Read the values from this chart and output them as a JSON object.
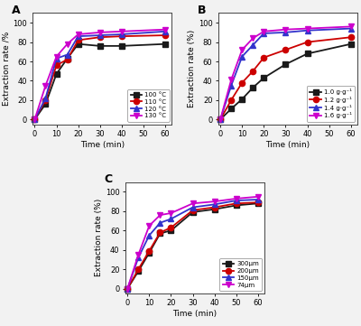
{
  "panel_A": {
    "title": "A",
    "xlabel": "Time (min)",
    "ylabel": "Extraction rate /%",
    "x": [
      0,
      5,
      10,
      15,
      20,
      30,
      40,
      60
    ],
    "series": [
      {
        "label": "100 °C",
        "color": "#1a1a1a",
        "marker": "s",
        "y": [
          0,
          16,
          47,
          63,
          78,
          76,
          76,
          78
        ]
      },
      {
        "label": "110 °C",
        "color": "#cc0000",
        "marker": "o",
        "y": [
          0,
          20,
          56,
          62,
          82,
          85,
          86,
          87
        ]
      },
      {
        "label": "120 °C",
        "color": "#3333cc",
        "marker": "^",
        "y": [
          0,
          22,
          63,
          67,
          86,
          87,
          88,
          91
        ]
      },
      {
        "label": "130 °C",
        "color": "#cc00cc",
        "marker": "v",
        "y": [
          0,
          35,
          65,
          78,
          88,
          90,
          91,
          93
        ]
      }
    ],
    "xlim": [
      -1,
      63
    ],
    "ylim": [
      -5,
      110
    ],
    "yticks": [
      0,
      20,
      40,
      60,
      80,
      100
    ],
    "xticks": [
      0,
      10,
      20,
      30,
      40,
      50,
      60
    ],
    "legend_loc": "lower right"
  },
  "panel_B": {
    "title": "B",
    "xlabel": "Time (min)",
    "ylabel": "Extraction rate (%)",
    "x": [
      0,
      5,
      10,
      15,
      20,
      30,
      40,
      60
    ],
    "series": [
      {
        "label": "1.0 g·g⁻¹",
        "color": "#1a1a1a",
        "marker": "s",
        "y": [
          0,
          11,
          21,
          33,
          43,
          57,
          68,
          78
        ]
      },
      {
        "label": "1.2 g·g⁻¹",
        "color": "#cc0000",
        "marker": "o",
        "y": [
          0,
          20,
          38,
          50,
          64,
          72,
          80,
          85
        ]
      },
      {
        "label": "1.4 g·g⁻¹",
        "color": "#3333cc",
        "marker": "^",
        "y": [
          0,
          35,
          65,
          77,
          89,
          90,
          92,
          94
        ]
      },
      {
        "label": "1.6 g·g⁻¹",
        "color": "#cc00cc",
        "marker": "v",
        "y": [
          0,
          41,
          72,
          84,
          91,
          93,
          94,
          96
        ]
      }
    ],
    "xlim": [
      -1,
      63
    ],
    "ylim": [
      -5,
      110
    ],
    "yticks": [
      0,
      20,
      40,
      60,
      80,
      100
    ],
    "xticks": [
      0,
      10,
      20,
      30,
      40,
      50,
      60
    ],
    "legend_loc": "lower right"
  },
  "panel_C": {
    "title": "C",
    "xlabel": "Time (min)",
    "ylabel": "Extraction rate (%)",
    "x": [
      0,
      5,
      10,
      15,
      20,
      30,
      40,
      50,
      60
    ],
    "series": [
      {
        "label": "300μm",
        "color": "#1a1a1a",
        "marker": "s",
        "y": [
          0,
          18,
          37,
          57,
          60,
          79,
          82,
          86,
          88
        ]
      },
      {
        "label": "200μm",
        "color": "#cc0000",
        "marker": "o",
        "y": [
          0,
          20,
          39,
          58,
          63,
          81,
          84,
          88,
          89
        ]
      },
      {
        "label": "150μm",
        "color": "#3333cc",
        "marker": "^",
        "y": [
          0,
          32,
          55,
          68,
          72,
          84,
          87,
          91,
          92
        ]
      },
      {
        "label": "74μm",
        "color": "#cc00cc",
        "marker": "v",
        "y": [
          0,
          35,
          65,
          76,
          78,
          88,
          90,
          93,
          95
        ]
      }
    ],
    "xlim": [
      -1,
      63
    ],
    "ylim": [
      -5,
      110
    ],
    "yticks": [
      0,
      20,
      40,
      60,
      80,
      100
    ],
    "xticks": [
      0,
      10,
      20,
      30,
      40,
      50,
      60
    ],
    "legend_loc": "lower right"
  },
  "figure_bg": "#f2f2f2",
  "axes_bg": "#ffffff",
  "linewidth": 1.3,
  "markersize": 4.5
}
